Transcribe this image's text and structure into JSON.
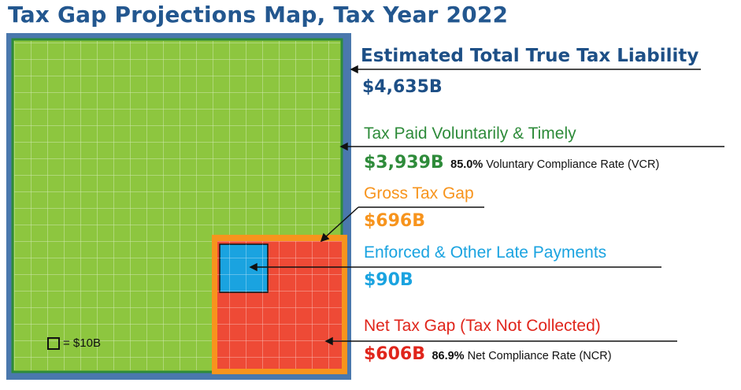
{
  "title": "Tax Gap Projections Map, Tax Year 2022",
  "colors": {
    "outer_border": "#4a78ad",
    "paid": "#8dc63f",
    "paid_border": "#2e8b3a",
    "gross_border": "#f7941d",
    "enforced": "#1aa3e0",
    "net_gap": "#ee4a36",
    "title": "#23578f"
  },
  "labels": {
    "total": {
      "heading": "Estimated Total True Tax Liability",
      "amount": "$4,635B"
    },
    "paid": {
      "heading": "Tax Paid Voluntarily & Timely",
      "amount": "$3,939B",
      "rate": "85.0%",
      "rate_label": "Voluntary Compliance Rate (VCR)"
    },
    "gross": {
      "heading": "Gross Tax Gap",
      "amount": "$696B"
    },
    "enforced": {
      "heading": "Enforced & Other Late Payments",
      "amount": "$90B"
    },
    "net": {
      "heading": "Net Tax Gap (Tax Not Collected)",
      "amount": "$606B",
      "rate": "86.9%",
      "rate_label": "Net Compliance Rate (NCR)"
    }
  },
  "legend": {
    "text": "= $10B"
  }
}
